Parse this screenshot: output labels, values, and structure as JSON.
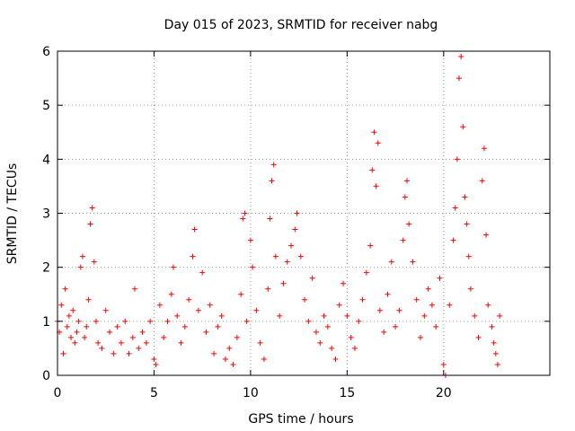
{
  "chart_data": {
    "type": "scatter",
    "title": "Day 015 of 2023, SRMTID for receiver nabg",
    "xlabel": "GPS time / hours",
    "ylabel": "SRMTID / TECUs",
    "xlim": [
      0,
      25.5
    ],
    "ylim": [
      0,
      6
    ],
    "x_ticks": [
      0,
      5,
      10,
      15,
      20
    ],
    "x_tick_labels": [
      "0",
      "5",
      "10",
      "15",
      "20"
    ],
    "y_ticks": [
      0,
      1,
      2,
      3,
      4,
      5,
      6
    ],
    "y_tick_labels": [
      "0",
      "1",
      "2",
      "3",
      "4",
      "5",
      "6"
    ],
    "grid": true,
    "marker": "+",
    "point_color": "#ff0000",
    "series": [
      {
        "name": "SRMTID",
        "points": [
          [
            0.0,
            1.0
          ],
          [
            0.1,
            0.8
          ],
          [
            0.2,
            1.3
          ],
          [
            0.3,
            0.4
          ],
          [
            0.4,
            1.6
          ],
          [
            0.5,
            0.9
          ],
          [
            0.6,
            1.1
          ],
          [
            0.7,
            0.7
          ],
          [
            0.8,
            1.2
          ],
          [
            0.9,
            0.6
          ],
          [
            1.0,
            0.8
          ],
          [
            1.1,
            1.0
          ],
          [
            1.2,
            2.0
          ],
          [
            1.3,
            2.2
          ],
          [
            1.4,
            0.7
          ],
          [
            1.5,
            0.9
          ],
          [
            1.6,
            1.4
          ],
          [
            1.7,
            2.8
          ],
          [
            1.8,
            3.1
          ],
          [
            1.9,
            2.1
          ],
          [
            2.0,
            1.0
          ],
          [
            2.1,
            0.6
          ],
          [
            2.3,
            0.5
          ],
          [
            2.5,
            1.2
          ],
          [
            2.7,
            0.8
          ],
          [
            2.9,
            0.4
          ],
          [
            3.1,
            0.9
          ],
          [
            3.3,
            0.6
          ],
          [
            3.5,
            1.0
          ],
          [
            3.7,
            0.4
          ],
          [
            3.9,
            0.7
          ],
          [
            4.0,
            1.6
          ],
          [
            4.2,
            0.5
          ],
          [
            4.4,
            0.8
          ],
          [
            4.6,
            0.6
          ],
          [
            4.8,
            1.0
          ],
          [
            5.0,
            0.3
          ],
          [
            5.1,
            0.2
          ],
          [
            5.3,
            1.3
          ],
          [
            5.5,
            0.7
          ],
          [
            5.7,
            1.0
          ],
          [
            5.9,
            1.5
          ],
          [
            6.0,
            2.0
          ],
          [
            6.2,
            1.1
          ],
          [
            6.4,
            0.6
          ],
          [
            6.6,
            0.9
          ],
          [
            6.8,
            1.4
          ],
          [
            7.0,
            2.2
          ],
          [
            7.1,
            2.7
          ],
          [
            7.3,
            1.2
          ],
          [
            7.5,
            1.9
          ],
          [
            7.7,
            0.8
          ],
          [
            7.9,
            1.3
          ],
          [
            8.1,
            0.4
          ],
          [
            8.3,
            0.9
          ],
          [
            8.5,
            1.1
          ],
          [
            8.7,
            0.3
          ],
          [
            8.9,
            0.5
          ],
          [
            9.1,
            0.2
          ],
          [
            9.3,
            0.7
          ],
          [
            9.5,
            1.5
          ],
          [
            9.6,
            2.9
          ],
          [
            9.7,
            3.0
          ],
          [
            9.8,
            1.0
          ],
          [
            10.0,
            2.5
          ],
          [
            10.1,
            2.0
          ],
          [
            10.3,
            1.2
          ],
          [
            10.5,
            0.6
          ],
          [
            10.7,
            0.3
          ],
          [
            10.9,
            1.6
          ],
          [
            11.0,
            2.9
          ],
          [
            11.1,
            3.6
          ],
          [
            11.2,
            3.9
          ],
          [
            11.3,
            2.2
          ],
          [
            11.5,
            1.1
          ],
          [
            11.7,
            1.7
          ],
          [
            11.9,
            2.1
          ],
          [
            12.1,
            2.4
          ],
          [
            12.3,
            2.7
          ],
          [
            12.4,
            3.0
          ],
          [
            12.6,
            2.2
          ],
          [
            12.8,
            1.4
          ],
          [
            13.0,
            1.0
          ],
          [
            13.2,
            1.8
          ],
          [
            13.4,
            0.8
          ],
          [
            13.6,
            0.6
          ],
          [
            13.8,
            1.1
          ],
          [
            14.0,
            0.9
          ],
          [
            14.2,
            0.5
          ],
          [
            14.4,
            0.3
          ],
          [
            14.6,
            1.3
          ],
          [
            14.8,
            1.7
          ],
          [
            15.0,
            1.1
          ],
          [
            15.2,
            0.7
          ],
          [
            15.4,
            0.5
          ],
          [
            15.6,
            1.0
          ],
          [
            15.8,
            1.4
          ],
          [
            16.0,
            1.9
          ],
          [
            16.2,
            2.4
          ],
          [
            16.3,
            3.8
          ],
          [
            16.4,
            4.5
          ],
          [
            16.5,
            3.5
          ],
          [
            16.6,
            4.3
          ],
          [
            16.7,
            1.2
          ],
          [
            16.9,
            0.8
          ],
          [
            17.1,
            1.5
          ],
          [
            17.3,
            2.1
          ],
          [
            17.5,
            0.9
          ],
          [
            17.7,
            1.2
          ],
          [
            17.9,
            2.5
          ],
          [
            18.0,
            3.3
          ],
          [
            18.1,
            3.6
          ],
          [
            18.2,
            2.8
          ],
          [
            18.4,
            2.1
          ],
          [
            18.6,
            1.4
          ],
          [
            18.8,
            0.7
          ],
          [
            19.0,
            1.1
          ],
          [
            19.2,
            1.6
          ],
          [
            19.4,
            1.3
          ],
          [
            19.6,
            0.9
          ],
          [
            19.8,
            1.8
          ],
          [
            20.0,
            0.2
          ],
          [
            20.1,
            0.0
          ],
          [
            20.3,
            1.3
          ],
          [
            20.5,
            2.5
          ],
          [
            20.6,
            3.1
          ],
          [
            20.7,
            4.0
          ],
          [
            20.8,
            5.5
          ],
          [
            20.9,
            5.9
          ],
          [
            21.0,
            4.6
          ],
          [
            21.1,
            3.3
          ],
          [
            21.2,
            2.8
          ],
          [
            21.3,
            2.2
          ],
          [
            21.4,
            1.6
          ],
          [
            21.6,
            1.1
          ],
          [
            21.8,
            0.7
          ],
          [
            22.0,
            3.6
          ],
          [
            22.1,
            4.2
          ],
          [
            22.2,
            2.6
          ],
          [
            22.3,
            1.3
          ],
          [
            22.5,
            0.9
          ],
          [
            22.6,
            0.6
          ],
          [
            22.7,
            0.4
          ],
          [
            22.8,
            0.2
          ],
          [
            22.9,
            1.1
          ]
        ]
      }
    ]
  }
}
